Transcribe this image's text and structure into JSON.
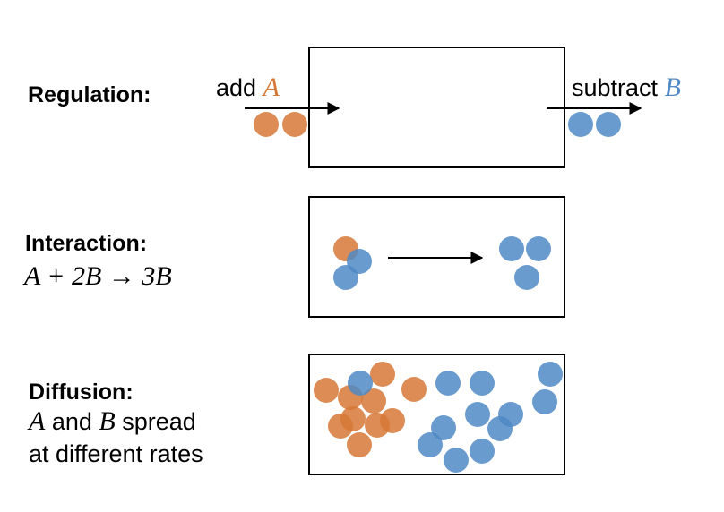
{
  "colors": {
    "A": "#D67836",
    "B": "#4F89C5"
  },
  "regulation": {
    "title": "Regulation:",
    "add_word": "add",
    "add_species": "A",
    "subtract_word": "subtract",
    "subtract_species": "B"
  },
  "interaction": {
    "title": "Interaction:",
    "reaction": "A + 2B → 3B"
  },
  "diffusion": {
    "title": "Diffusion:",
    "species_a": "A",
    "and_word": "and",
    "species_b": "B",
    "line1_rest": "spread",
    "line2": "at different rates"
  }
}
